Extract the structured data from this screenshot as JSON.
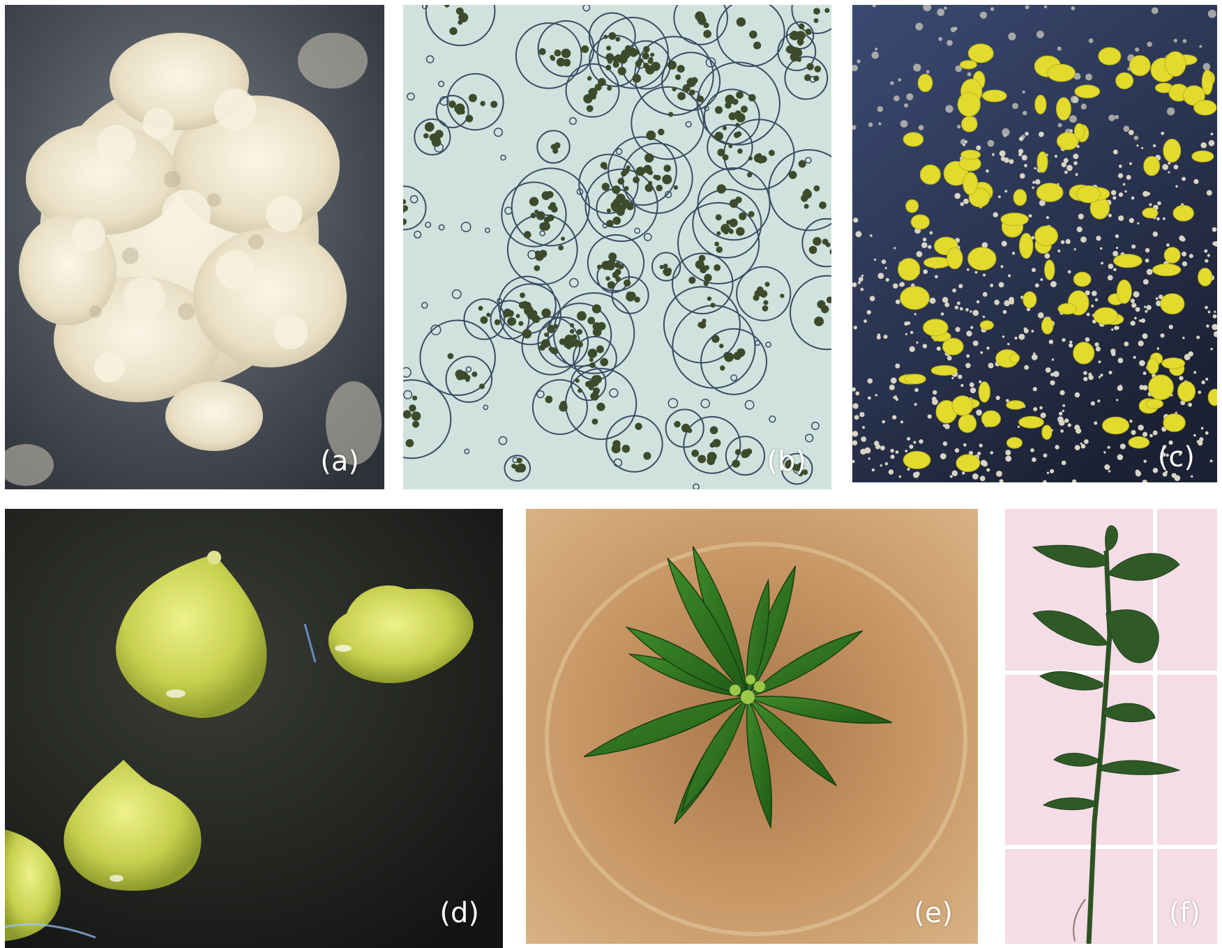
{
  "panels": [
    {
      "id": "a",
      "label": "(a)",
      "subject": "callus-tissue"
    },
    {
      "id": "b",
      "label": "(b)",
      "subject": "protoplasts-micrograph"
    },
    {
      "id": "c",
      "label": "(c)",
      "subject": "embryogenic-microcalli"
    },
    {
      "id": "d",
      "label": "(d)",
      "subject": "somatic-embryos"
    },
    {
      "id": "e",
      "label": "(e)",
      "subject": "regenerated-shoot-top-view"
    },
    {
      "id": "f",
      "label": "(f)",
      "subject": "plantlet-side-view"
    }
  ]
}
